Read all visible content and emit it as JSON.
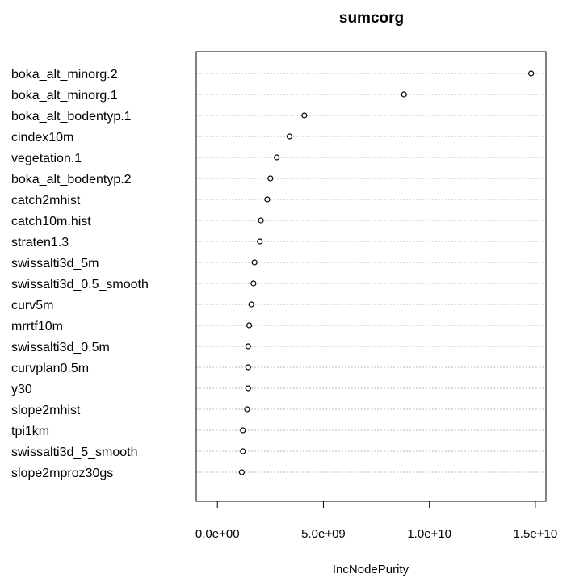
{
  "chart_data": {
    "type": "scatter",
    "title": "sumcorg",
    "xlabel": "IncNodePurity",
    "ylabel": "",
    "xlim": [
      -1000000000.0,
      15500000000.0
    ],
    "xticks": [
      0,
      5000000000,
      10000000000,
      15000000000
    ],
    "xtick_labels": [
      "0.0e+00",
      "5.0e+09",
      "1.0e+10",
      "1.5e+10"
    ],
    "grid": "dotted horizontal lines per variable",
    "categories": [
      "boka_alt_minorg.2",
      "boka_alt_minorg.1",
      "boka_alt_bodentyp.1",
      "cindex10m",
      "vegetation.1",
      "boka_alt_bodentyp.2",
      "catch2mhist",
      "catch10m.hist",
      "straten1.3",
      "swissalti3d_5m",
      "swissalti3d_0.5_smooth",
      "curv5m",
      "mrrtf10m",
      "swissalti3d_0.5m",
      "curvplan0.5m",
      "y30",
      "slope2mhist",
      "tpi1km",
      "swissalti3d_5_smooth",
      "slope2mproz30gs"
    ],
    "values": [
      14800000000,
      8800000000,
      4100000000,
      3400000000,
      2800000000,
      2500000000,
      2350000000,
      2050000000,
      2000000000,
      1750000000,
      1700000000,
      1600000000,
      1500000000,
      1450000000,
      1450000000,
      1450000000,
      1400000000,
      1200000000,
      1200000000,
      1150000000
    ]
  }
}
